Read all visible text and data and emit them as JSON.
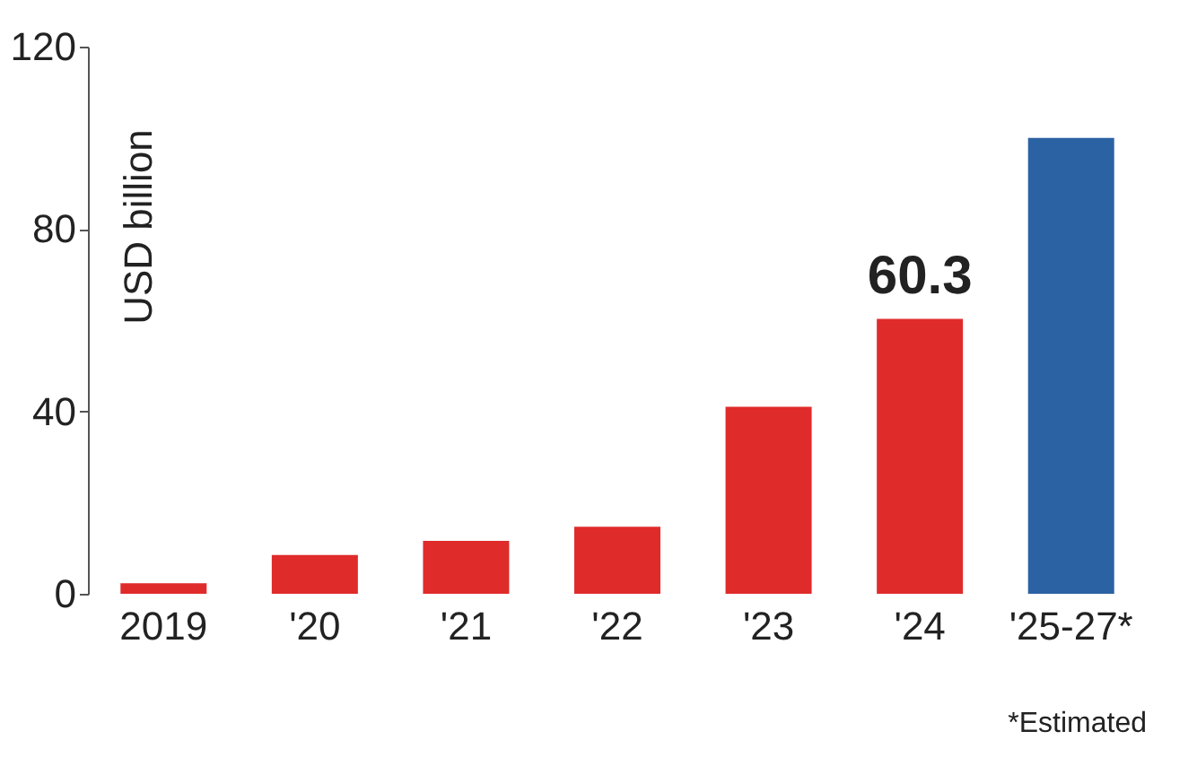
{
  "chart_data": {
    "type": "bar",
    "ylabel": "USD billion",
    "categories": [
      "2019",
      "'20",
      "'21",
      "'22",
      "'23",
      "'24",
      "'25-27*"
    ],
    "values": [
      2.3,
      8.5,
      11.6,
      14.7,
      41,
      60.3,
      100
    ],
    "colors": [
      "#e02b2b",
      "#e02b2b",
      "#e02b2b",
      "#e02b2b",
      "#e02b2b",
      "#e02b2b",
      "#2b62a3"
    ],
    "value_labels": [
      null,
      null,
      null,
      null,
      null,
      "60.3",
      null
    ],
    "ylim": [
      0,
      120
    ],
    "yticks": [
      0,
      40,
      80,
      120
    ],
    "grid": false,
    "annotations": [
      "*Estimated"
    ]
  }
}
